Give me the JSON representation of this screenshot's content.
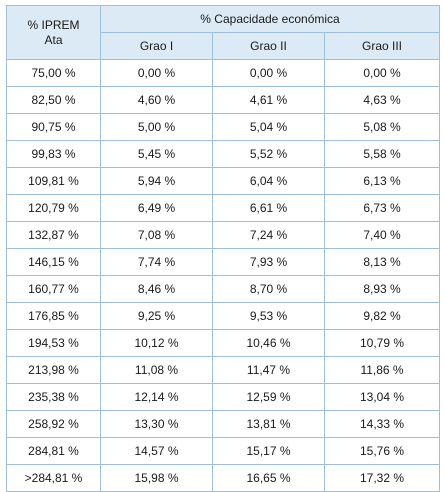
{
  "table": {
    "header": {
      "first_col_line1": "% IPREM",
      "first_col_line2": "Ata",
      "group_label": "% Capacidade económica",
      "columns": [
        "Grao I",
        "Grao II",
        "Grao III"
      ]
    },
    "rows": [
      [
        "75,00 %",
        "0,00 %",
        "0,00 %",
        "0,00 %"
      ],
      [
        "82,50 %",
        "4,60 %",
        "4,61 %",
        "4,63 %"
      ],
      [
        "90,75 %",
        "5,00 %",
        "5,04 %",
        "5,08 %"
      ],
      [
        "99,83 %",
        "5,45 %",
        "5,52 %",
        "5,58 %"
      ],
      [
        "109,81 %",
        "5,94 %",
        "6,04 %",
        "6,13 %"
      ],
      [
        "120,79 %",
        "6,49 %",
        "6,61 %",
        "6,73 %"
      ],
      [
        "132,87 %",
        "7,08 %",
        "7,24 %",
        "7,40 %"
      ],
      [
        "146,15 %",
        "7,74 %",
        "7,93 %",
        "8,13 %"
      ],
      [
        "160,77 %",
        "8,46 %",
        "8,70 %",
        "8,93 %"
      ],
      [
        "176,85 %",
        "9,25 %",
        "9,53 %",
        "9,82 %"
      ],
      [
        "194,53 %",
        "10,12 %",
        "10,46 %",
        "10,79 %"
      ],
      [
        "213,98 %",
        "11,08 %",
        "11,47 %",
        "11,86 %"
      ],
      [
        "235,38 %",
        "12,14 %",
        "12,59 %",
        "13,04 %"
      ],
      [
        "258,92 %",
        "13,30 %",
        "13,81 %",
        "14,33 %"
      ],
      [
        "284,81 %",
        "14,57 %",
        "15,17 %",
        "15,76 %"
      ],
      [
        ">284,81 %",
        "15,98 %",
        "16,65 %",
        "17,32 %"
      ]
    ],
    "colors": {
      "header_background": "#dbeaf5",
      "border": "#9dbfd8"
    }
  }
}
